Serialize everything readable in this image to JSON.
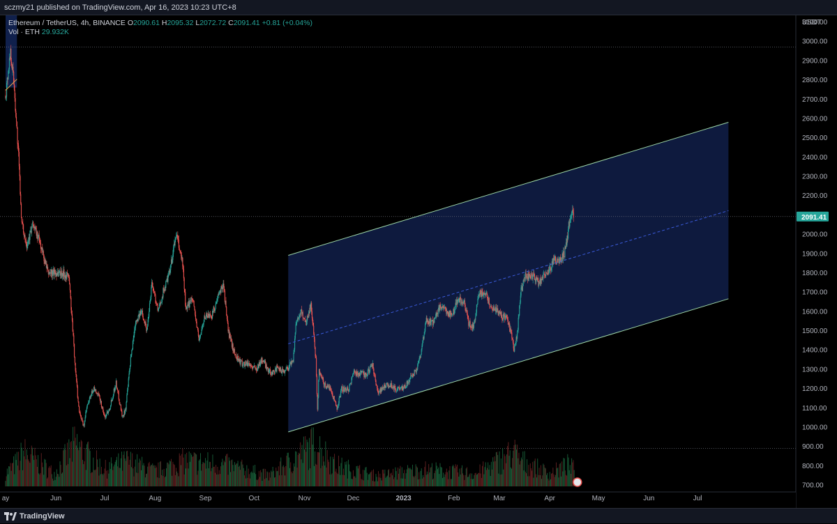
{
  "header": {
    "published_text": "sczmy21 published on TradingView.com, Apr 16, 2023 10:23 UTC+8"
  },
  "legend": {
    "symbol": "Ethereum / TetherUS, 4h, BINANCE",
    "o_label": "O",
    "o_value": "2090.61",
    "h_label": "H",
    "h_value": "2095.32",
    "l_label": "L",
    "l_value": "2072.72",
    "c_label": "C",
    "c_value": "2091.41",
    "change": "+0.81 (+0.04%)",
    "vol_label": "Vol · ETH",
    "vol_value": "29.932K"
  },
  "footer": {
    "brand": "TradingView"
  },
  "colors": {
    "background": "#000000",
    "axis_text": "#b2b5be",
    "up_candle": "#26a69a",
    "down_candle": "#ef5350",
    "channel_fill": "#1e3a8a",
    "channel_line": "#9ed7a8",
    "midline": "#3b5bdb",
    "price_tag": "#26a69a"
  },
  "chart_data": {
    "type": "candlestick",
    "currency_label": "USDT",
    "last_price": 2091.41,
    "last_price_label": "2091.41",
    "ylim": [
      680,
      3200
    ],
    "y_ticks": [
      "3100.00",
      "3000.00",
      "2900.00",
      "2800.00",
      "2700.00",
      "2600.00",
      "2500.00",
      "2400.00",
      "2300.00",
      "2200.00",
      "2100.00",
      "2000.00",
      "1900.00",
      "1800.00",
      "1700.00",
      "1600.00",
      "1500.00",
      "1400.00",
      "1300.00",
      "1200.00",
      "1100.00",
      "1000.00",
      "900.00",
      "800.00",
      "700.00"
    ],
    "y_tick_values": [
      3100,
      3000,
      2900,
      2800,
      2700,
      2600,
      2500,
      2400,
      2300,
      2200,
      2100,
      2000,
      1900,
      1800,
      1700,
      1600,
      1500,
      1400,
      1300,
      1200,
      1100,
      1000,
      900,
      800,
      700
    ],
    "xlim": [
      "2022-05-01",
      "2023-07-31"
    ],
    "x_ticks": [
      {
        "label": "ay",
        "date": "2022-05-01"
      },
      {
        "label": "Jun",
        "date": "2022-06-01"
      },
      {
        "label": "Jul",
        "date": "2022-07-01"
      },
      {
        "label": "Aug",
        "date": "2022-08-01"
      },
      {
        "label": "Sep",
        "date": "2022-09-01"
      },
      {
        "label": "Oct",
        "date": "2022-10-01"
      },
      {
        "label": "Nov",
        "date": "2022-11-01"
      },
      {
        "label": "Dec",
        "date": "2022-12-01"
      },
      {
        "label": "2023",
        "date": "2023-01-01"
      },
      {
        "label": "Feb",
        "date": "2023-02-01"
      },
      {
        "label": "Mar",
        "date": "2023-03-01"
      },
      {
        "label": "Apr",
        "date": "2023-04-01"
      },
      {
        "label": "May",
        "date": "2023-05-01"
      },
      {
        "label": "Jun",
        "date": "2023-06-01"
      },
      {
        "label": "Jul",
        "date": "2023-07-01"
      }
    ],
    "price_path": [
      [
        "2022-05-01",
        2720
      ],
      [
        "2022-05-04",
        2950
      ],
      [
        "2022-05-06",
        2800
      ],
      [
        "2022-05-09",
        2400
      ],
      [
        "2022-05-11",
        2050
      ],
      [
        "2022-05-14",
        1950
      ],
      [
        "2022-05-18",
        2050
      ],
      [
        "2022-05-22",
        1960
      ],
      [
        "2022-05-27",
        1800
      ],
      [
        "2022-05-31",
        1800
      ],
      [
        "2022-06-05",
        1800
      ],
      [
        "2022-06-09",
        1780
      ],
      [
        "2022-06-13",
        1300
      ],
      [
        "2022-06-15",
        1100
      ],
      [
        "2022-06-18",
        1000
      ],
      [
        "2022-06-20",
        1100
      ],
      [
        "2022-06-24",
        1200
      ],
      [
        "2022-06-28",
        1150
      ],
      [
        "2022-07-01",
        1050
      ],
      [
        "2022-07-04",
        1100
      ],
      [
        "2022-07-08",
        1230
      ],
      [
        "2022-07-12",
        1050
      ],
      [
        "2022-07-14",
        1100
      ],
      [
        "2022-07-17",
        1350
      ],
      [
        "2022-07-20",
        1550
      ],
      [
        "2022-07-24",
        1600
      ],
      [
        "2022-07-27",
        1500
      ],
      [
        "2022-07-30",
        1750
      ],
      [
        "2022-08-03",
        1600
      ],
      [
        "2022-08-06",
        1700
      ],
      [
        "2022-08-10",
        1800
      ],
      [
        "2022-08-14",
        2000
      ],
      [
        "2022-08-18",
        1850
      ],
      [
        "2022-08-20",
        1600
      ],
      [
        "2022-08-24",
        1680
      ],
      [
        "2022-08-28",
        1450
      ],
      [
        "2022-09-01",
        1580
      ],
      [
        "2022-09-05",
        1580
      ],
      [
        "2022-09-08",
        1650
      ],
      [
        "2022-09-12",
        1750
      ],
      [
        "2022-09-15",
        1500
      ],
      [
        "2022-09-19",
        1380
      ],
      [
        "2022-09-23",
        1330
      ],
      [
        "2022-09-27",
        1330
      ],
      [
        "2022-10-02",
        1300
      ],
      [
        "2022-10-06",
        1350
      ],
      [
        "2022-10-11",
        1280
      ],
      [
        "2022-10-15",
        1300
      ],
      [
        "2022-10-19",
        1290
      ],
      [
        "2022-10-22",
        1310
      ],
      [
        "2022-10-25",
        1350
      ],
      [
        "2022-10-27",
        1550
      ],
      [
        "2022-10-30",
        1600
      ],
      [
        "2022-11-02",
        1540
      ],
      [
        "2022-11-05",
        1640
      ],
      [
        "2022-11-08",
        1350
      ],
      [
        "2022-11-09",
        1100
      ],
      [
        "2022-11-10",
        1300
      ],
      [
        "2022-11-13",
        1220
      ],
      [
        "2022-11-17",
        1200
      ],
      [
        "2022-11-21",
        1100
      ],
      [
        "2022-11-24",
        1200
      ],
      [
        "2022-11-28",
        1190
      ],
      [
        "2022-12-01",
        1280
      ],
      [
        "2022-12-05",
        1280
      ],
      [
        "2022-12-09",
        1270
      ],
      [
        "2022-12-13",
        1320
      ],
      [
        "2022-12-16",
        1180
      ],
      [
        "2022-12-20",
        1210
      ],
      [
        "2022-12-24",
        1220
      ],
      [
        "2022-12-28",
        1195
      ],
      [
        "2023-01-01",
        1200
      ],
      [
        "2023-01-05",
        1250
      ],
      [
        "2023-01-09",
        1300
      ],
      [
        "2023-01-12",
        1400
      ],
      [
        "2023-01-15",
        1550
      ],
      [
        "2023-01-19",
        1540
      ],
      [
        "2023-01-23",
        1620
      ],
      [
        "2023-01-27",
        1600
      ],
      [
        "2023-01-31",
        1580
      ],
      [
        "2023-02-03",
        1660
      ],
      [
        "2023-02-07",
        1650
      ],
      [
        "2023-02-10",
        1540
      ],
      [
        "2023-02-13",
        1510
      ],
      [
        "2023-02-16",
        1690
      ],
      [
        "2023-02-20",
        1700
      ],
      [
        "2023-02-24",
        1620
      ],
      [
        "2023-02-28",
        1600
      ],
      [
        "2023-03-03",
        1570
      ],
      [
        "2023-03-06",
        1560
      ],
      [
        "2023-03-09",
        1450
      ],
      [
        "2023-03-10",
        1400
      ],
      [
        "2023-03-12",
        1480
      ],
      [
        "2023-03-14",
        1700
      ],
      [
        "2023-03-17",
        1780
      ],
      [
        "2023-03-21",
        1790
      ],
      [
        "2023-03-25",
        1750
      ],
      [
        "2023-03-29",
        1790
      ],
      [
        "2023-04-01",
        1820
      ],
      [
        "2023-04-04",
        1870
      ],
      [
        "2023-04-07",
        1860
      ],
      [
        "2023-04-10",
        1900
      ],
      [
        "2023-04-12",
        2000
      ],
      [
        "2023-04-14",
        2120
      ],
      [
        "2023-04-16",
        2091
      ]
    ],
    "volume_profile": [
      [
        "2022-05-01",
        0.3
      ],
      [
        "2022-05-09",
        0.6
      ],
      [
        "2022-05-12",
        0.8
      ],
      [
        "2022-05-31",
        0.3
      ],
      [
        "2022-06-13",
        1.0
      ],
      [
        "2022-06-18",
        0.8
      ],
      [
        "2022-07-01",
        0.4
      ],
      [
        "2022-07-15",
        0.6
      ],
      [
        "2022-08-01",
        0.35
      ],
      [
        "2022-08-19",
        0.6
      ],
      [
        "2022-09-15",
        0.5
      ],
      [
        "2022-10-10",
        0.25
      ],
      [
        "2022-11-08",
        1.0
      ],
      [
        "2022-11-20",
        0.5
      ],
      [
        "2022-12-15",
        0.25
      ],
      [
        "2023-01-14",
        0.4
      ],
      [
        "2023-02-15",
        0.3
      ],
      [
        "2023-03-10",
        0.8
      ],
      [
        "2023-03-14",
        0.6
      ],
      [
        "2023-04-01",
        0.3
      ],
      [
        "2023-04-12",
        0.5
      ],
      [
        "2023-04-16",
        0.4
      ]
    ],
    "ref_lines": [
      {
        "name": "high-line",
        "value": 2970,
        "style": "dotted"
      },
      {
        "name": "last-price-line",
        "value": 2091.41,
        "style": "dotted"
      },
      {
        "name": "volume-base-line",
        "value": 890,
        "style": "dotted"
      }
    ],
    "channel": {
      "start_date": "2022-10-22",
      "end_date": "2023-07-20",
      "upper_start": 1890,
      "upper_end": 2580,
      "lower_start": 975,
      "lower_end": 1665,
      "mid_start": 1432,
      "mid_end": 2122
    },
    "small_box": {
      "start_date": "2022-05-01",
      "end_date": "2022-05-08",
      "top": 3140,
      "bottom": 2760
    }
  }
}
